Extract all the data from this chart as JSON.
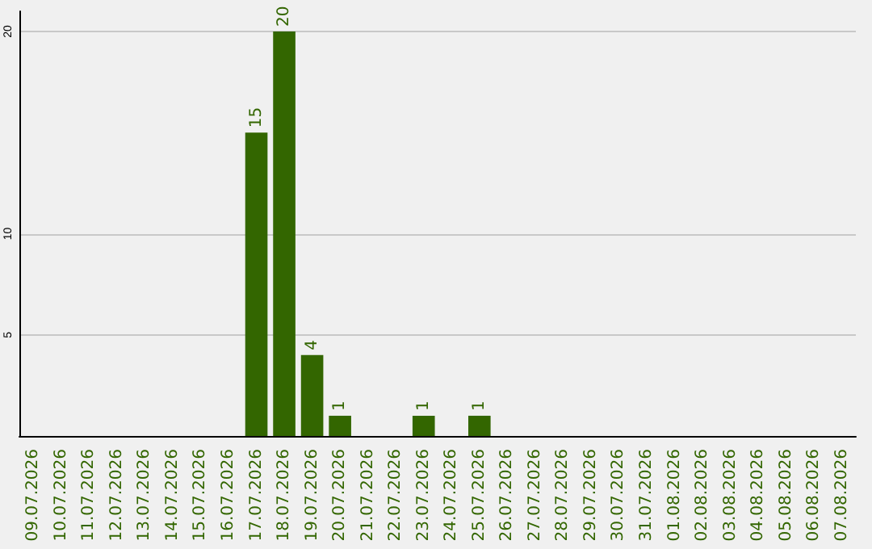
{
  "chart_data": {
    "type": "bar",
    "categories": [
      "09.07.2026",
      "10.07.2026",
      "11.07.2026",
      "12.07.2026",
      "13.07.2026",
      "14.07.2026",
      "15.07.2026",
      "16.07.2026",
      "17.07.2026",
      "18.07.2026",
      "19.07.2026",
      "20.07.2026",
      "21.07.2026",
      "22.07.2026",
      "23.07.2026",
      "24.07.2026",
      "25.07.2026",
      "26.07.2026",
      "27.07.2026",
      "28.07.2026",
      "29.07.2026",
      "30.07.2026",
      "31.07.2026",
      "01.08.2026",
      "02.08.2026",
      "03.08.2026",
      "04.08.2026",
      "05.08.2026",
      "06.08.2026",
      "07.08.2026"
    ],
    "values": [
      0,
      0,
      0,
      0,
      0,
      0,
      0,
      0,
      15,
      20,
      4,
      1,
      0,
      0,
      1,
      0,
      1,
      0,
      0,
      0,
      0,
      0,
      0,
      0,
      0,
      0,
      0,
      0,
      0,
      0
    ],
    "value_labels": [
      null,
      null,
      null,
      null,
      null,
      null,
      null,
      null,
      "15",
      "20",
      "4",
      "1",
      null,
      null,
      "1",
      null,
      "1",
      null,
      null,
      null,
      null,
      null,
      null,
      null,
      null,
      null,
      null,
      null,
      null,
      null
    ],
    "color": "#336600",
    "ylim": [
      0,
      21
    ],
    "yticks": [
      5,
      10,
      20
    ],
    "grid": "y"
  }
}
